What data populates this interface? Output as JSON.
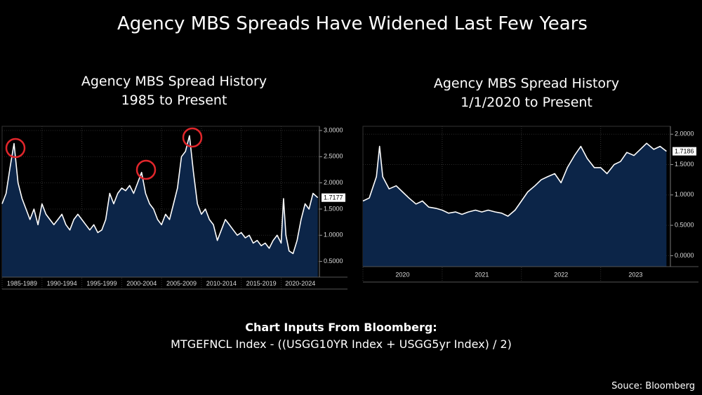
{
  "title": "Agency MBS Spreads Have Widened Last Few Years",
  "chart_data": [
    {
      "type": "area-line",
      "title": "Agency MBS Spread History",
      "subtitle": "1985 to Present",
      "color": "#ffffff",
      "fill": "#0c2548",
      "x": [
        1985,
        1985.5,
        1986,
        1986.5,
        1987,
        1987.5,
        1988,
        1988.5,
        1989,
        1989.5,
        1990,
        1990.5,
        1991,
        1991.5,
        1992,
        1992.5,
        1993,
        1993.5,
        1994,
        1994.5,
        1995,
        1995.5,
        1996,
        1996.5,
        1997,
        1997.5,
        1998,
        1998.5,
        1999,
        1999.5,
        2000,
        2000.5,
        2001,
        2001.5,
        2002,
        2002.5,
        2003,
        2003.5,
        2004,
        2004.5,
        2005,
        2005.5,
        2006,
        2006.5,
        2007,
        2007.5,
        2008,
        2008.5,
        2009,
        2009.5,
        2010,
        2010.5,
        2011,
        2011.5,
        2012,
        2012.5,
        2013,
        2013.5,
        2014,
        2014.5,
        2015,
        2015.5,
        2016,
        2016.5,
        2017,
        2017.5,
        2018,
        2018.5,
        2019,
        2019.5,
        2020,
        2020.3,
        2020.6,
        2021,
        2021.5,
        2022,
        2022.5,
        2023,
        2023.5,
        2024,
        2024.6
      ],
      "values": [
        1.6,
        1.8,
        2.3,
        2.75,
        2.0,
        1.7,
        1.5,
        1.3,
        1.5,
        1.2,
        1.6,
        1.4,
        1.3,
        1.2,
        1.3,
        1.4,
        1.2,
        1.1,
        1.3,
        1.4,
        1.3,
        1.2,
        1.1,
        1.2,
        1.05,
        1.1,
        1.3,
        1.8,
        1.6,
        1.8,
        1.9,
        1.85,
        1.95,
        1.8,
        2.0,
        2.2,
        1.8,
        1.6,
        1.5,
        1.3,
        1.2,
        1.4,
        1.3,
        1.6,
        1.9,
        2.5,
        2.6,
        2.9,
        2.2,
        1.6,
        1.4,
        1.5,
        1.3,
        1.2,
        0.9,
        1.1,
        1.3,
        1.2,
        1.1,
        1.0,
        1.05,
        0.95,
        1.0,
        0.85,
        0.9,
        0.8,
        0.85,
        0.75,
        0.9,
        1.0,
        0.85,
        1.7,
        1.0,
        0.7,
        0.65,
        0.9,
        1.3,
        1.6,
        1.5,
        1.8,
        1.7177
      ],
      "last_value_label": "1.7177",
      "xlim": [
        1985,
        2024.8
      ],
      "ylim": [
        0.2,
        3.08
      ],
      "xticks": [
        {
          "value": 1985,
          "label": "1985-1989"
        },
        {
          "value": 1990,
          "label": "1990-1994"
        },
        {
          "value": 1995,
          "label": "1995-1999"
        },
        {
          "value": 2000,
          "label": "2000-2004"
        },
        {
          "value": 2005,
          "label": "2005-2009"
        },
        {
          "value": 2010,
          "label": "2010-2014"
        },
        {
          "value": 2015,
          "label": "2015-2019"
        },
        {
          "value": 2020,
          "label": "2020-2024"
        }
      ],
      "yticks": [
        {
          "value": 0.5,
          "label": "0.5000"
        },
        {
          "value": 1,
          "label": "1.0000"
        },
        {
          "value": 1.5,
          "label": "1.5000"
        },
        {
          "value": 2,
          "label": "2.0000"
        },
        {
          "value": 2.5,
          "label": "2.5000"
        },
        {
          "value": 3,
          "label": "3.0000"
        }
      ]
    },
    {
      "type": "area-line",
      "title": "Agency MBS Spread History",
      "subtitle": "1/1/2020 to Present",
      "color": "#ffffff",
      "fill": "#0c2548",
      "x": [
        2020,
        2020.08,
        2020.17,
        2020.21,
        2020.25,
        2020.33,
        2020.42,
        2020.5,
        2020.58,
        2020.67,
        2020.75,
        2020.83,
        2020.92,
        2021,
        2021.08,
        2021.17,
        2021.25,
        2021.33,
        2021.42,
        2021.5,
        2021.58,
        2021.67,
        2021.75,
        2021.83,
        2021.92,
        2022,
        2022.08,
        2022.17,
        2022.25,
        2022.33,
        2022.42,
        2022.5,
        2022.58,
        2022.67,
        2022.75,
        2022.83,
        2022.92,
        2023,
        2023.08,
        2023.17,
        2023.25,
        2023.33,
        2023.42,
        2023.5,
        2023.58,
        2023.67,
        2023.75,
        2023.83
      ],
      "values": [
        0.9,
        0.95,
        1.3,
        1.8,
        1.3,
        1.1,
        1.15,
        1.05,
        0.95,
        0.85,
        0.9,
        0.8,
        0.78,
        0.75,
        0.7,
        0.72,
        0.68,
        0.72,
        0.75,
        0.72,
        0.75,
        0.72,
        0.7,
        0.65,
        0.75,
        0.9,
        1.05,
        1.15,
        1.25,
        1.3,
        1.35,
        1.2,
        1.45,
        1.65,
        1.8,
        1.6,
        1.45,
        1.45,
        1.35,
        1.5,
        1.55,
        1.7,
        1.65,
        1.75,
        1.85,
        1.75,
        1.8,
        1.7186
      ],
      "last_value_label": "1.7186",
      "xlim": [
        2020,
        2023.88
      ],
      "ylim": [
        -0.18,
        2.13
      ],
      "xticks": [
        {
          "value": 2020,
          "label": "2020"
        },
        {
          "value": 2021,
          "label": "2021"
        },
        {
          "value": 2022,
          "label": "2022"
        },
        {
          "value": 2023,
          "label": "2023"
        }
      ],
      "yticks": [
        {
          "value": 0,
          "label": "0.0000"
        },
        {
          "value": 0.5,
          "label": "0.5000"
        },
        {
          "value": 1,
          "label": "1.0000"
        },
        {
          "value": 1.5,
          "label": "1.5000"
        },
        {
          "value": 2,
          "label": "2.0000"
        }
      ]
    }
  ],
  "footer": {
    "heading": "Chart Inputs From Bloomberg:",
    "formula": "MTGEFNCL Index - ((USGG10YR Index + USGG5yr Index) / 2)",
    "source": "Souce: Bloomberg"
  }
}
